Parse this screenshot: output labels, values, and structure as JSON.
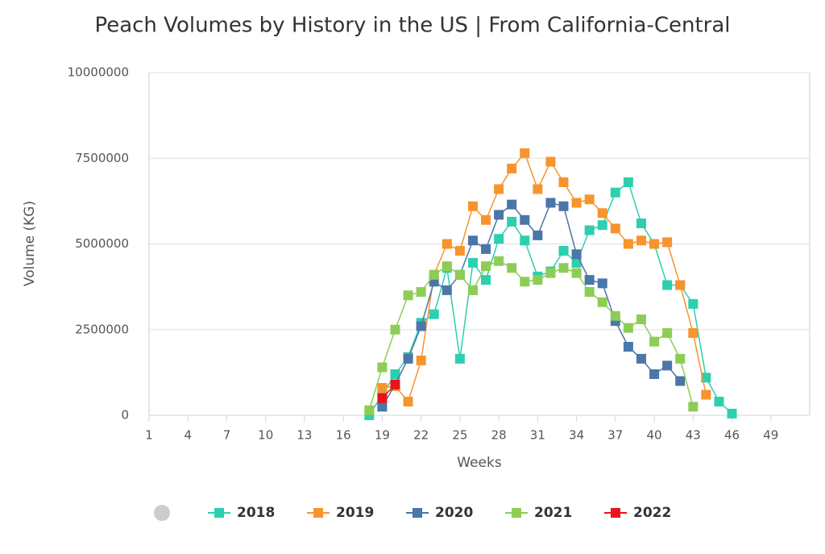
{
  "chart_data": {
    "type": "line",
    "title": "Peach Volumes by History in the US | From California-Central",
    "x_label": "Weeks",
    "y_label": "Volume (KG)",
    "x": [
      18,
      19,
      20,
      21,
      22,
      23,
      24,
      25,
      26,
      27,
      28,
      29,
      30,
      31,
      32,
      33,
      34,
      35,
      36,
      37,
      38,
      39,
      40,
      41,
      42,
      43,
      44,
      45,
      46
    ],
    "xlim": [
      1,
      52
    ],
    "xticks": [
      1,
      4,
      7,
      10,
      13,
      16,
      19,
      22,
      25,
      28,
      31,
      34,
      37,
      40,
      43,
      46,
      49
    ],
    "ylim": [
      0,
      10000000
    ],
    "yticks": [
      0,
      2500000,
      5000000,
      7500000,
      10000000
    ],
    "grid": true,
    "legend": "bottom",
    "series": [
      {
        "name": "2018",
        "color": "#2ecfae",
        "values": [
          0,
          600000,
          1200000,
          1700000,
          2700000,
          2950000,
          4300000,
          1650000,
          4450000,
          3950000,
          5150000,
          5650000,
          5100000,
          4050000,
          4200000,
          4800000,
          4450000,
          5400000,
          5550000,
          6500000,
          6800000,
          5600000,
          5000000,
          3800000,
          3800000,
          3250000,
          1100000,
          400000,
          50000
        ]
      },
      {
        "name": "2019",
        "color": "#f7942d",
        "values": [
          null,
          800000,
          850000,
          400000,
          1600000,
          4100000,
          5000000,
          4800000,
          6100000,
          5700000,
          6600000,
          7200000,
          7650000,
          6600000,
          7400000,
          6800000,
          6200000,
          6300000,
          5900000,
          5450000,
          5000000,
          5100000,
          5000000,
          5050000,
          3800000,
          2400000,
          600000,
          null,
          null
        ]
      },
      {
        "name": "2020",
        "color": "#4a76a8",
        "values": [
          null,
          250000,
          900000,
          1650000,
          2600000,
          3900000,
          3650000,
          4100000,
          5100000,
          4850000,
          5850000,
          6150000,
          5700000,
          5250000,
          6200000,
          6100000,
          4700000,
          3950000,
          3850000,
          2750000,
          2000000,
          1650000,
          1200000,
          1450000,
          1000000,
          null,
          null,
          null,
          null
        ]
      },
      {
        "name": "2021",
        "color": "#8dcd55",
        "values": [
          150000,
          1400000,
          2500000,
          3500000,
          3600000,
          4100000,
          4350000,
          4100000,
          3650000,
          4350000,
          4500000,
          4300000,
          3900000,
          3950000,
          4150000,
          4300000,
          4150000,
          3600000,
          3300000,
          2900000,
          2550000,
          2800000,
          2150000,
          2400000,
          1650000,
          250000,
          null,
          null,
          null
        ]
      },
      {
        "name": "2022",
        "color": "#e8141b",
        "values": [
          null,
          500000,
          900000,
          null,
          null,
          null,
          null,
          null,
          null,
          null,
          null,
          null,
          null,
          null,
          null,
          null,
          null,
          null,
          null,
          null,
          null,
          null,
          null,
          null,
          null,
          null,
          null,
          null,
          null
        ]
      }
    ]
  }
}
